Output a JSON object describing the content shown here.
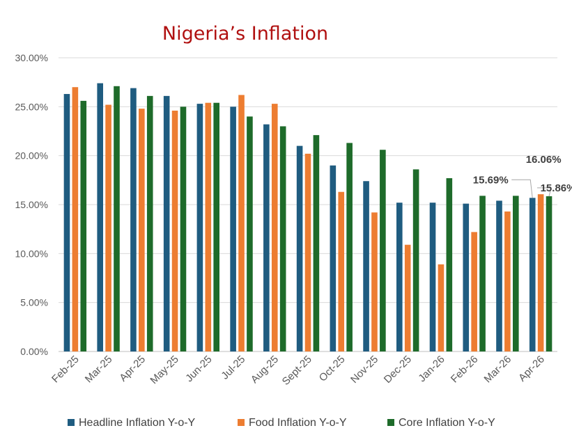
{
  "chart_data": {
    "type": "bar",
    "title": "Nigeria’s Inflation",
    "title_color": "#b01010",
    "categories": [
      "Feb-25",
      "Mar-25",
      "Apr-25",
      "May-25",
      "Jun-25",
      "Jul-25",
      "Aug-25",
      "Sept-25",
      "Oct-25",
      "Nov-25",
      "Dec-25",
      "Jan-26",
      "Feb-26",
      "Mar-26",
      "Apr-26"
    ],
    "series": [
      {
        "name": "Headline Inflation Y-o-Y",
        "color": "#1f5c80",
        "values": [
          26.3,
          27.4,
          26.9,
          26.1,
          25.3,
          25.0,
          23.2,
          21.0,
          19.0,
          17.4,
          15.2,
          15.2,
          15.1,
          15.4,
          15.69
        ]
      },
      {
        "name": "Food Inflation Y-o-Y",
        "color": "#ed7d31",
        "values": [
          27.0,
          25.2,
          24.8,
          24.6,
          25.4,
          26.2,
          25.3,
          20.2,
          16.3,
          14.2,
          10.9,
          8.9,
          12.2,
          14.3,
          16.06
        ]
      },
      {
        "name": "Core Inflation Y-o-Y",
        "color": "#1e6b2a",
        "values": [
          25.6,
          27.1,
          26.1,
          25.0,
          25.4,
          24.0,
          23.0,
          22.1,
          21.3,
          20.6,
          18.6,
          17.7,
          15.9,
          15.9,
          15.86
        ]
      }
    ],
    "ylim": [
      0,
      30
    ],
    "yticks": [
      "0.00%",
      "5.00%",
      "10.00%",
      "15.00%",
      "20.00%",
      "25.00%",
      "30.00%"
    ],
    "xlabel": "",
    "ylabel": "",
    "grid": true,
    "legend_position": "bottom",
    "data_labels": [
      {
        "category": "Apr-26",
        "series": 0,
        "text": "15.69%"
      },
      {
        "category": "Apr-26",
        "series": 1,
        "text": "16.06%"
      },
      {
        "category": "Apr-26",
        "series": 2,
        "text": "15.86%"
      }
    ]
  }
}
